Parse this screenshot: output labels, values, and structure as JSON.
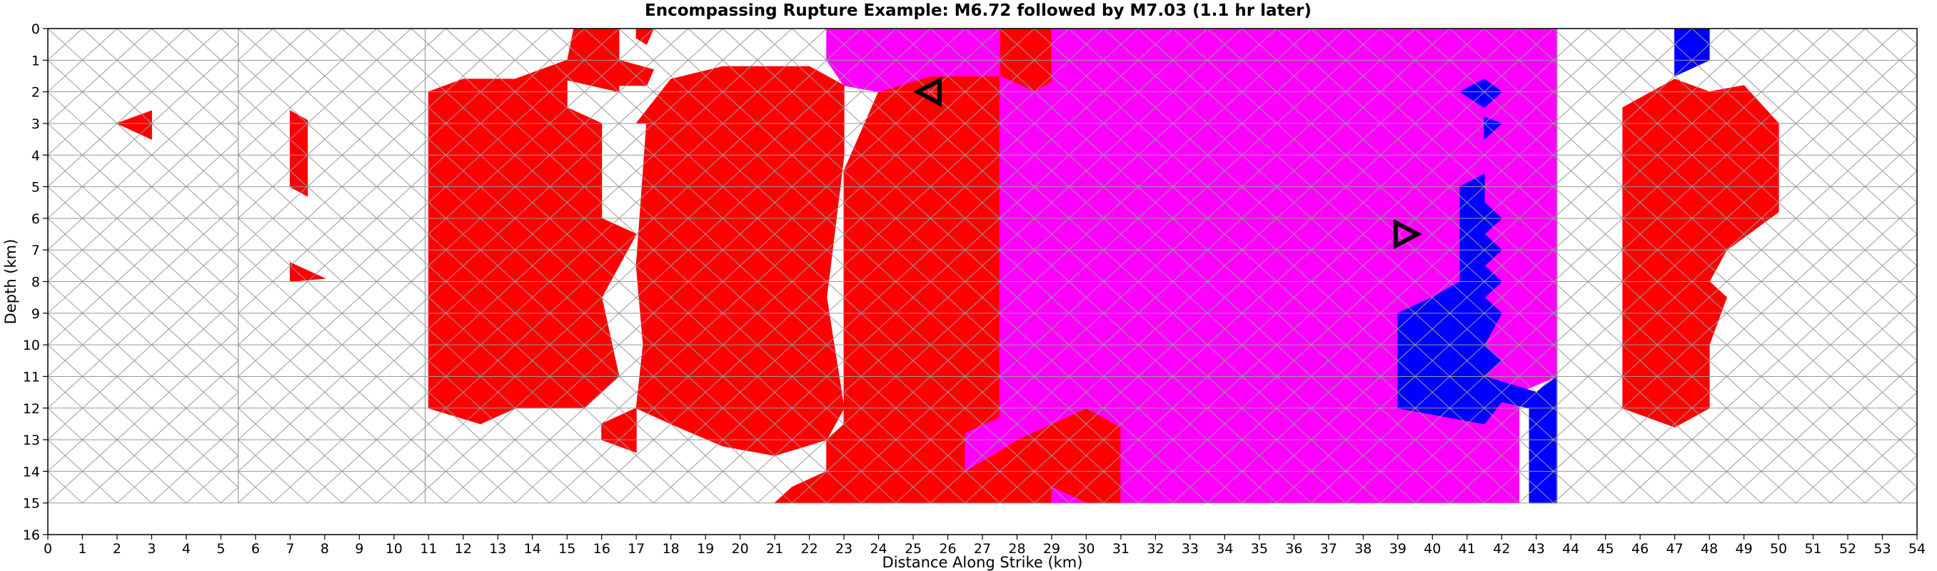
{
  "chart_data": {
    "type": "heatmap",
    "title": "Encompassing Rupture Example: M6.72 followed by M7.03 (1.1 hr later)",
    "xlabel": "Distance Along Strike (km)",
    "ylabel": "Depth (km)",
    "xlim": [
      0,
      54
    ],
    "ylim": [
      16,
      0
    ],
    "x_ticks": [
      0,
      1,
      2,
      3,
      4,
      5,
      6,
      7,
      8,
      9,
      10,
      11,
      12,
      13,
      14,
      15,
      16,
      17,
      18,
      19,
      20,
      21,
      22,
      23,
      24,
      25,
      26,
      27,
      28,
      29,
      30,
      31,
      32,
      33,
      34,
      35,
      36,
      37,
      38,
      39,
      40,
      41,
      42,
      43,
      44,
      45,
      46,
      47,
      48,
      49,
      50,
      51,
      52,
      53,
      54
    ],
    "y_ticks": [
      0,
      1,
      2,
      3,
      4,
      5,
      6,
      7,
      8,
      9,
      10,
      11,
      12,
      13,
      14,
      15,
      16
    ],
    "mesh": {
      "type": "triangular",
      "depth_bottom_km": 15,
      "fault_segments_km": [
        [
          0,
          5.5
        ],
        [
          5.5,
          10.9
        ],
        [
          10.9,
          43.6
        ],
        [
          43.6,
          54
        ]
      ]
    },
    "legend": [],
    "colors": {
      "first_rupture_only": "#ff0000",
      "second_rupture_only": "#0000ff",
      "both_ruptures": "#ff00ff",
      "unruptured_fill": "#ffffff",
      "unruptured_edge": "#999999",
      "ruptured_edge": "#000000"
    },
    "ruptured_regions": [
      {
        "color": "#ff0000",
        "polygon": [
          [
            15.2,
            0
          ],
          [
            16.5,
            0
          ],
          [
            16.5,
            2.0
          ],
          [
            14.9,
            1.6
          ],
          [
            15.2,
            0
          ]
        ]
      },
      {
        "color": "#ff0000",
        "polygon": [
          [
            17.0,
            0
          ],
          [
            17.5,
            0
          ],
          [
            17.3,
            0.5
          ],
          [
            17.0,
            0.3
          ],
          [
            17.0,
            0
          ]
        ]
      },
      {
        "color": "#ff0000",
        "polygon": [
          [
            16.5,
            1.0
          ],
          [
            17.5,
            1.3
          ],
          [
            17.3,
            1.8
          ],
          [
            16.5,
            1.8
          ]
        ]
      },
      {
        "color": "#ff0000",
        "polygon": [
          [
            2.0,
            3.0
          ],
          [
            3.0,
            2.6
          ],
          [
            3.0,
            3.5
          ],
          [
            2.0,
            3.0
          ]
        ]
      },
      {
        "color": "#ff0000",
        "polygon": [
          [
            7.0,
            2.6
          ],
          [
            7.5,
            2.9
          ],
          [
            7.5,
            5.3
          ],
          [
            7.0,
            5.0
          ],
          [
            7.0,
            2.6
          ]
        ]
      },
      {
        "color": "#ff0000",
        "polygon": [
          [
            7.0,
            7.4
          ],
          [
            8.0,
            7.9
          ],
          [
            7.0,
            8.0
          ]
        ]
      },
      {
        "color": "#ff0000",
        "polygon": [
          [
            11.0,
            2.0
          ],
          [
            12.0,
            1.6
          ],
          [
            13.5,
            1.6
          ],
          [
            15.0,
            1.0
          ],
          [
            15.0,
            2.5
          ],
          [
            16.0,
            3.0
          ],
          [
            16.0,
            6.0
          ],
          [
            17.0,
            6.5
          ],
          [
            16.0,
            8.5
          ],
          [
            16.5,
            11.0
          ],
          [
            15.5,
            12.0
          ],
          [
            13.5,
            12.0
          ],
          [
            12.5,
            12.5
          ],
          [
            11.0,
            12.0
          ]
        ]
      },
      {
        "color": "#ff0000",
        "polygon": [
          [
            16.0,
            12.5
          ],
          [
            17.0,
            12.0
          ],
          [
            17.0,
            13.4
          ],
          [
            16.0,
            13.0
          ]
        ]
      },
      {
        "color": "#ff0000",
        "polygon": [
          [
            17.0,
            3.0
          ],
          [
            18.0,
            1.6
          ],
          [
            19.5,
            1.2
          ],
          [
            22.0,
            1.2
          ],
          [
            23.0,
            1.8
          ],
          [
            23.0,
            4.0
          ],
          [
            22.5,
            8.5
          ],
          [
            23.0,
            12.0
          ],
          [
            22.5,
            13.0
          ],
          [
            21.0,
            13.5
          ],
          [
            19.5,
            13.2
          ],
          [
            18.0,
            12.5
          ],
          [
            17.0,
            12.0
          ],
          [
            17.2,
            10.0
          ],
          [
            17.0,
            7.5
          ],
          [
            17.3,
            3.0
          ]
        ]
      },
      {
        "color": "#ff0000",
        "polygon": [
          [
            23.0,
            4.5
          ],
          [
            24.0,
            2.0
          ],
          [
            25.5,
            1.5
          ],
          [
            27.5,
            1.5
          ],
          [
            27.5,
            12.3
          ],
          [
            26.5,
            12.8
          ],
          [
            26.5,
            14.0
          ],
          [
            28.0,
            13.0
          ],
          [
            29.0,
            12.5
          ],
          [
            30.0,
            12.0
          ],
          [
            31.0,
            12.6
          ],
          [
            31.0,
            15.0
          ],
          [
            30.0,
            15.0
          ],
          [
            29.0,
            14.5
          ],
          [
            29.0,
            15.0
          ],
          [
            21.0,
            15.0
          ],
          [
            21.5,
            14.5
          ],
          [
            22.5,
            14.0
          ],
          [
            22.5,
            13.0
          ],
          [
            23.0,
            12.5
          ],
          [
            23.0,
            4.5
          ]
        ]
      },
      {
        "color": "#ff0000",
        "polygon": [
          [
            27.5,
            0
          ],
          [
            29.0,
            0
          ],
          [
            29.0,
            1.7
          ],
          [
            28.5,
            2.0
          ],
          [
            27.5,
            1.5
          ]
        ]
      },
      {
        "color": "#ff0000",
        "polygon": [
          [
            45.5,
            2.5
          ],
          [
            47.0,
            1.6
          ],
          [
            48.0,
            2.0
          ],
          [
            49.0,
            1.8
          ],
          [
            50.0,
            3.0
          ],
          [
            50.0,
            5.8
          ],
          [
            48.5,
            7.0
          ],
          [
            48.0,
            8.0
          ],
          [
            48.5,
            8.5
          ],
          [
            48.0,
            10.0
          ],
          [
            48.0,
            12.0
          ],
          [
            47.0,
            12.6
          ],
          [
            45.5,
            12.0
          ],
          [
            45.5,
            2.5
          ]
        ]
      },
      {
        "color": "#ff00ff",
        "polygon": [
          [
            22.5,
            0
          ],
          [
            27.5,
            0
          ],
          [
            27.5,
            1.5
          ],
          [
            25.5,
            1.5
          ],
          [
            24.0,
            2.0
          ],
          [
            23.0,
            1.8
          ],
          [
            22.5,
            1.0
          ]
        ]
      },
      {
        "color": "#ff00ff",
        "polygon": [
          [
            29.0,
            0
          ],
          [
            43.6,
            0
          ],
          [
            43.6,
            11.0
          ],
          [
            42.5,
            11.5
          ],
          [
            42.5,
            15.0
          ],
          [
            31.0,
            15.0
          ],
          [
            31.0,
            12.6
          ],
          [
            30.0,
            12.0
          ],
          [
            29.0,
            12.5
          ],
          [
            28.0,
            13.0
          ],
          [
            26.5,
            14.0
          ],
          [
            26.5,
            12.8
          ],
          [
            27.5,
            12.3
          ],
          [
            27.5,
            1.5
          ],
          [
            28.5,
            2.0
          ],
          [
            29.0,
            1.7
          ]
        ]
      },
      {
        "color": "#ff00ff",
        "polygon": [
          [
            29.0,
            14.5
          ],
          [
            30.0,
            15.0
          ],
          [
            29.0,
            15.0
          ]
        ]
      },
      {
        "color": "#0000ff",
        "polygon": [
          [
            47.0,
            0
          ],
          [
            48.0,
            0
          ],
          [
            48.0,
            1.0
          ],
          [
            47.0,
            1.5
          ]
        ]
      },
      {
        "color": "#0000ff",
        "polygon": [
          [
            40.8,
            2.0
          ],
          [
            41.5,
            1.6
          ],
          [
            42.0,
            2.0
          ],
          [
            41.5,
            2.5
          ]
        ]
      },
      {
        "color": "#0000ff",
        "polygon": [
          [
            41.5,
            2.8
          ],
          [
            42.0,
            3.0
          ],
          [
            41.5,
            3.5
          ]
        ]
      },
      {
        "color": "#0000ff",
        "polygon": [
          [
            40.8,
            5.0
          ],
          [
            41.5,
            4.6
          ],
          [
            41.5,
            5.5
          ],
          [
            42.0,
            6.0
          ],
          [
            41.5,
            6.5
          ],
          [
            42.0,
            7.0
          ],
          [
            41.5,
            7.5
          ],
          [
            42.0,
            8.0
          ],
          [
            41.5,
            8.5
          ],
          [
            42.0,
            9.0
          ],
          [
            41.5,
            10.0
          ],
          [
            42.0,
            10.5
          ],
          [
            41.5,
            11.0
          ],
          [
            43.0,
            11.5
          ],
          [
            43.6,
            11.0
          ],
          [
            43.6,
            15.0
          ],
          [
            42.8,
            15.0
          ],
          [
            42.8,
            12.0
          ],
          [
            42.0,
            11.8
          ],
          [
            41.5,
            12.5
          ],
          [
            40.5,
            12.3
          ],
          [
            39.0,
            12.0
          ],
          [
            39.0,
            9.0
          ],
          [
            40.0,
            8.5
          ],
          [
            40.8,
            8.0
          ],
          [
            40.8,
            5.0
          ]
        ]
      }
    ],
    "markers": [
      {
        "shape": "triangle-left",
        "x": 25.5,
        "y": 2.0
      },
      {
        "shape": "triangle-right",
        "x": 39.2,
        "y": 6.5
      }
    ]
  }
}
